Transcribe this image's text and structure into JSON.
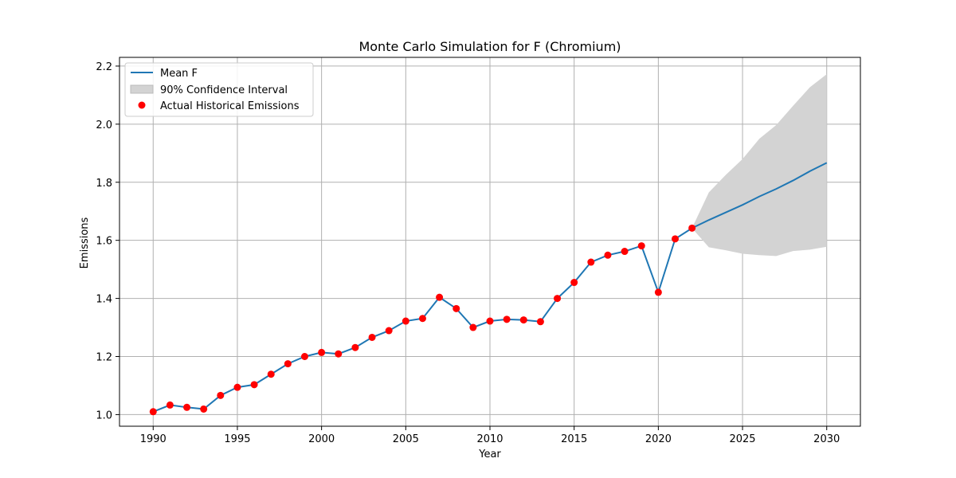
{
  "chart_data": {
    "type": "line",
    "title": "Monte Carlo Simulation for F (Chromium)",
    "xlabel": "Year",
    "ylabel": "Emissions",
    "xlim": [
      1988,
      2032
    ],
    "ylim": [
      0.96,
      2.23
    ],
    "xticks": [
      1990,
      1995,
      2000,
      2005,
      2010,
      2015,
      2020,
      2025,
      2030
    ],
    "yticks": [
      1.0,
      1.2,
      1.4,
      1.6,
      1.8,
      2.0,
      2.2
    ],
    "grid": true,
    "legend_position": "top-left",
    "colors": {
      "mean": "#1f77b4",
      "ci": "#d3d3d3",
      "actual": "#ff0000",
      "grid": "#b0b0b0"
    },
    "legend": [
      {
        "label": "Mean F",
        "kind": "line"
      },
      {
        "label": "90% Confidence Interval",
        "kind": "patch"
      },
      {
        "label": "Actual Historical Emissions",
        "kind": "marker"
      }
    ],
    "mean_series": {
      "name": "Mean F",
      "x": [
        1990,
        1991,
        1992,
        1993,
        1994,
        1995,
        1996,
        1997,
        1998,
        1999,
        2000,
        2001,
        2002,
        2003,
        2004,
        2005,
        2006,
        2007,
        2008,
        2009,
        2010,
        2011,
        2012,
        2013,
        2014,
        2015,
        2016,
        2017,
        2018,
        2019,
        2020,
        2021,
        2022,
        2023,
        2024,
        2025,
        2026,
        2027,
        2028,
        2029,
        2030
      ],
      "y": [
        1.01,
        1.033,
        1.025,
        1.019,
        1.066,
        1.094,
        1.103,
        1.139,
        1.175,
        1.2,
        1.214,
        1.209,
        1.231,
        1.266,
        1.289,
        1.322,
        1.331,
        1.404,
        1.365,
        1.3,
        1.322,
        1.328,
        1.326,
        1.32,
        1.4,
        1.455,
        1.525,
        1.549,
        1.562,
        1.581,
        1.421,
        1.605,
        1.642,
        1.67,
        1.696,
        1.722,
        1.751,
        1.777,
        1.806,
        1.838,
        1.867
      ]
    },
    "ci_band": {
      "name": "90% Confidence Interval",
      "x": [
        2022,
        2023,
        2024,
        2025,
        2026,
        2027,
        2028,
        2029,
        2030
      ],
      "lower": [
        1.642,
        1.576,
        1.566,
        1.554,
        1.549,
        1.546,
        1.563,
        1.568,
        1.578
      ],
      "upper": [
        1.642,
        1.765,
        1.825,
        1.88,
        1.95,
        1.997,
        2.063,
        2.127,
        2.172
      ]
    },
    "actual_series": {
      "name": "Actual Historical Emissions",
      "x": [
        1990,
        1991,
        1992,
        1993,
        1994,
        1995,
        1996,
        1997,
        1998,
        1999,
        2000,
        2001,
        2002,
        2003,
        2004,
        2005,
        2006,
        2007,
        2008,
        2009,
        2010,
        2011,
        2012,
        2013,
        2014,
        2015,
        2016,
        2017,
        2018,
        2019,
        2020,
        2021,
        2022
      ],
      "y": [
        1.01,
        1.033,
        1.025,
        1.019,
        1.066,
        1.094,
        1.103,
        1.139,
        1.175,
        1.2,
        1.214,
        1.209,
        1.231,
        1.266,
        1.289,
        1.322,
        1.331,
        1.404,
        1.365,
        1.3,
        1.322,
        1.328,
        1.326,
        1.32,
        1.4,
        1.455,
        1.525,
        1.549,
        1.562,
        1.581,
        1.421,
        1.605,
        1.642
      ]
    }
  }
}
